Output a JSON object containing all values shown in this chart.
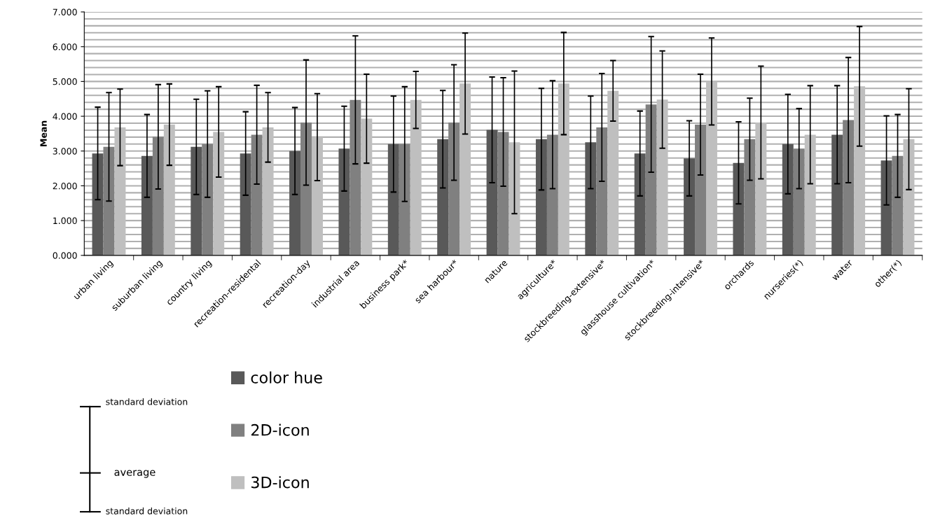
{
  "chart_data": {
    "type": "bar",
    "ylabel": "Mean",
    "categories": [
      "urban living",
      "suburban living",
      "country living",
      "recreation-residental",
      "recreation-day",
      "industrial area",
      "business park*",
      "sea harbour*",
      "nature",
      "agriculture*",
      "stockbreeding-extensive*",
      "glasshouse cultivation*",
      "stockbreeding-intensive*",
      "orchards",
      "nurseries(*)",
      "water",
      "other(*)"
    ],
    "series": [
      {
        "name": "color hue",
        "color": "#595959",
        "values": [
          2.93,
          2.86,
          3.12,
          2.93,
          3.0,
          3.07,
          3.2,
          3.34,
          3.61,
          3.34,
          3.25,
          2.93,
          2.79,
          2.66,
          3.2,
          3.47,
          2.73
        ],
        "errors": [
          1.33,
          1.19,
          1.37,
          1.2,
          1.25,
          1.22,
          1.38,
          1.4,
          1.52,
          1.46,
          1.33,
          1.22,
          1.08,
          1.18,
          1.43,
          1.41,
          1.28
        ]
      },
      {
        "name": "2D-icon",
        "color": "#808080",
        "values": [
          3.12,
          3.41,
          3.2,
          3.47,
          3.82,
          4.47,
          3.2,
          3.82,
          3.55,
          3.47,
          3.68,
          4.34,
          3.76,
          3.34,
          3.07,
          3.89,
          2.86
        ],
        "errors": [
          1.56,
          1.5,
          1.53,
          1.42,
          1.8,
          1.84,
          1.65,
          1.66,
          1.56,
          1.55,
          1.55,
          1.95,
          1.45,
          1.18,
          1.15,
          1.8,
          1.19
        ]
      },
      {
        "name": "3D-icon",
        "color": "#bfbfbf",
        "values": [
          3.68,
          3.76,
          3.55,
          3.68,
          3.4,
          3.93,
          4.47,
          4.94,
          3.25,
          4.94,
          4.73,
          4.48,
          5.0,
          3.82,
          3.47,
          4.86,
          3.34
        ],
        "errors": [
          1.1,
          1.17,
          1.3,
          1.0,
          1.25,
          1.28,
          0.82,
          1.45,
          2.05,
          1.47,
          0.87,
          1.4,
          1.25,
          1.62,
          1.41,
          1.72,
          1.45
        ]
      }
    ],
    "ylim": [
      0,
      7
    ],
    "yticks": [
      {
        "value": 0,
        "label": "0.000"
      },
      {
        "value": 1,
        "label": "1.000"
      },
      {
        "value": 2,
        "label": "2.000"
      },
      {
        "value": 3,
        "label": "3.000"
      },
      {
        "value": 4,
        "label": "4.000"
      },
      {
        "value": 5,
        "label": "5.000"
      },
      {
        "value": 6,
        "label": "6.000"
      },
      {
        "value": 7,
        "label": "7.000"
      }
    ],
    "grid": "y",
    "legend": "bottom",
    "annotations": [
      "standard deviation",
      "average",
      "standard deviation"
    ]
  }
}
